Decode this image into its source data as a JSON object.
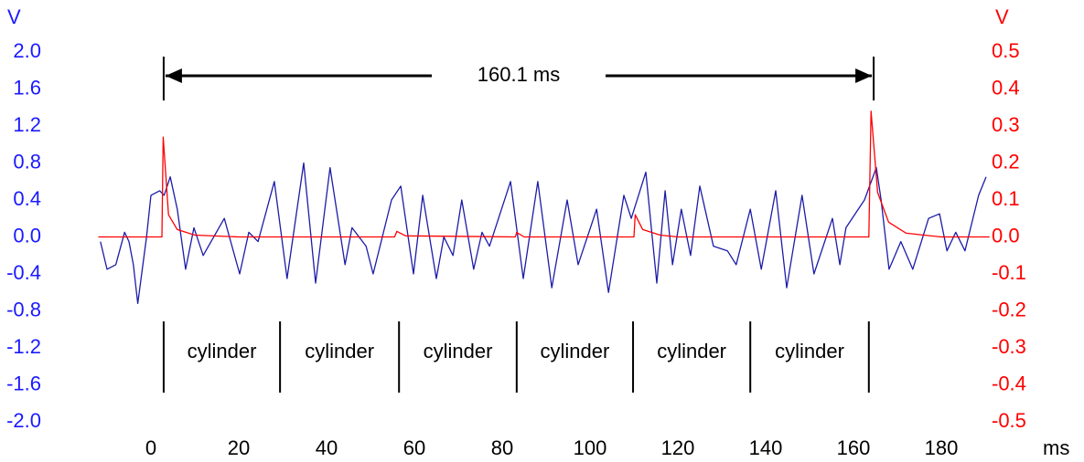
{
  "chart_data": {
    "type": "line",
    "y_axis_label": "V",
    "y2_axis_label": "V",
    "x_axis_label": "ms",
    "xlim": [
      -12,
      191
    ],
    "xticks": [
      0,
      20,
      40,
      60,
      80,
      100,
      120,
      140,
      160,
      180
    ],
    "ylim": [
      -2.0,
      2.0
    ],
    "yticks": [
      {
        "value": 2.0,
        "label": "2.0"
      },
      1.6,
      1.2,
      0.8,
      0.4,
      {
        "value": 0,
        "label": "0.0"
      },
      -0.4,
      -0.8,
      -1.2,
      -1.6,
      {
        "value": -2.0,
        "label": "-2.0"
      }
    ],
    "y2lim": [
      -0.5,
      0.5
    ],
    "y2ticks": [
      0.5,
      0.4,
      0.3,
      0.2,
      0.1,
      {
        "value": 0,
        "label": "0.0"
      },
      -0.1,
      -0.2,
      -0.3,
      -0.4,
      -0.5
    ],
    "y_color": "#1a1aff",
    "y2_color": "#ff0000",
    "series": [
      {
        "color": "#1c1ca8",
        "axis": "y",
        "x": [
          -11.5,
          -10,
          -8,
          -6,
          -5,
          -4,
          -3,
          -1,
          0,
          2,
          3,
          4.4,
          6,
          7.9,
          9.8,
          11.9,
          16.7,
          20.2,
          22.3,
          24.4,
          28.1,
          31,
          34.8,
          37.5,
          40.8,
          44.2,
          45.8,
          49,
          50.6,
          54.8,
          56.9,
          59.8,
          61.9,
          65,
          66.7,
          68.8,
          70.8,
          73.5,
          75.4,
          77.1,
          81.9,
          84.8,
          88.1,
          91.3,
          94.8,
          97.3,
          101.5,
          104.2,
          107.7,
          109.4,
          112.7,
          115.2,
          117.1,
          118.8,
          120.8,
          122.9,
          125,
          128.1,
          131.3,
          133.3,
          136.5,
          139,
          142.3,
          144.8,
          148.3,
          151,
          155.2,
          156.9,
          158.3,
          162.5,
          165.2,
          166.3,
          168.1,
          170.8,
          173.5,
          177.1,
          179.6,
          181.3,
          183.3,
          185.4,
          188.5,
          190.2
        ],
        "values": [
          -0.05,
          -0.35,
          -0.3,
          0.05,
          -0.05,
          -0.3,
          -0.72,
          0.0,
          0.45,
          0.5,
          0.45,
          0.65,
          0.3,
          -0.35,
          0.1,
          -0.2,
          0.2,
          -0.4,
          0.05,
          -0.05,
          0.6,
          -0.45,
          0.8,
          -0.5,
          0.75,
          -0.3,
          0.1,
          -0.1,
          -0.4,
          0.4,
          0.55,
          -0.4,
          0.45,
          -0.45,
          0.0,
          -0.2,
          0.4,
          -0.35,
          0.05,
          -0.1,
          0.6,
          -0.45,
          0.6,
          -0.55,
          0.4,
          -0.3,
          0.3,
          -0.6,
          0.45,
          0.2,
          0.7,
          -0.5,
          0.5,
          -0.3,
          0.3,
          -0.2,
          0.55,
          -0.1,
          -0.15,
          -0.3,
          0.3,
          -0.35,
          0.5,
          -0.55,
          0.45,
          -0.4,
          0.2,
          -0.3,
          0.1,
          0.4,
          0.75,
          0.4,
          -0.35,
          -0.05,
          -0.35,
          0.2,
          0.25,
          -0.15,
          0.05,
          -0.15,
          0.45,
          0.65
        ]
      },
      {
        "color": "#ff0000",
        "axis": "y2",
        "x": [
          -12,
          2.5,
          2.8,
          4,
          6,
          10,
          20,
          55.5,
          56,
          58,
          83,
          83.3,
          85,
          110,
          110.3,
          112,
          116,
          120,
          163.5,
          164,
          165.5,
          168,
          172,
          180,
          191
        ],
        "values": [
          0,
          0,
          0.27,
          0.06,
          0.02,
          0.005,
          0,
          0,
          0.015,
          0.003,
          0,
          0.012,
          0,
          0,
          0.06,
          0.02,
          0.005,
          0,
          0,
          0.34,
          0.12,
          0.04,
          0.01,
          0,
          0
        ]
      }
    ],
    "annotation": {
      "text": "160.1 ms",
      "x_start": 2.9,
      "x_end": 164.6
    },
    "segments": {
      "labels": [
        "cylinder",
        "cylinder",
        "cylinder",
        "cylinder",
        "cylinder",
        "cylinder"
      ],
      "boundaries": [
        2.9,
        29.4,
        56.5,
        83.3,
        109.8,
        136.5,
        163.5
      ]
    }
  }
}
